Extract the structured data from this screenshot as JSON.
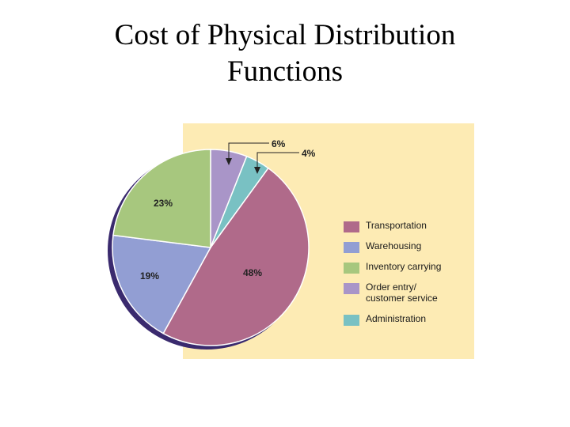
{
  "title": {
    "line1": "Cost of Physical Distribution",
    "line2": "Functions"
  },
  "colors": {
    "panel_background": "#FDEBB4",
    "shadow": "#3A2A6E",
    "slice_outline": "#FFFFFF",
    "label_text": "#222222"
  },
  "chart_data": {
    "type": "pie",
    "start": "12 o'clock, clockwise",
    "slices": [
      {
        "name": "Order entry/ customer service",
        "value": 6,
        "label": "6%",
        "color": "#A995C8"
      },
      {
        "name": "Administration",
        "value": 4,
        "label": "4%",
        "color": "#79C1C3"
      },
      {
        "name": "Transportation",
        "value": 48,
        "label": "48%",
        "color": "#B06A8A"
      },
      {
        "name": "Warehousing",
        "value": 19,
        "label": "19%",
        "color": "#929ED3"
      },
      {
        "name": "Inventory carrying",
        "value": 23,
        "label": "23%",
        "color": "#A7C77E"
      }
    ],
    "legend": [
      {
        "label": "Transportation",
        "color": "#B06A8A"
      },
      {
        "label": "Warehousing",
        "color": "#929ED3"
      },
      {
        "label": "Inventory carrying",
        "color": "#A7C77E"
      },
      {
        "label": "Order entry/",
        "label2": "customer service",
        "color": "#A995C8"
      },
      {
        "label": "Administration",
        "color": "#79C1C3"
      }
    ],
    "legend_position": "right"
  }
}
